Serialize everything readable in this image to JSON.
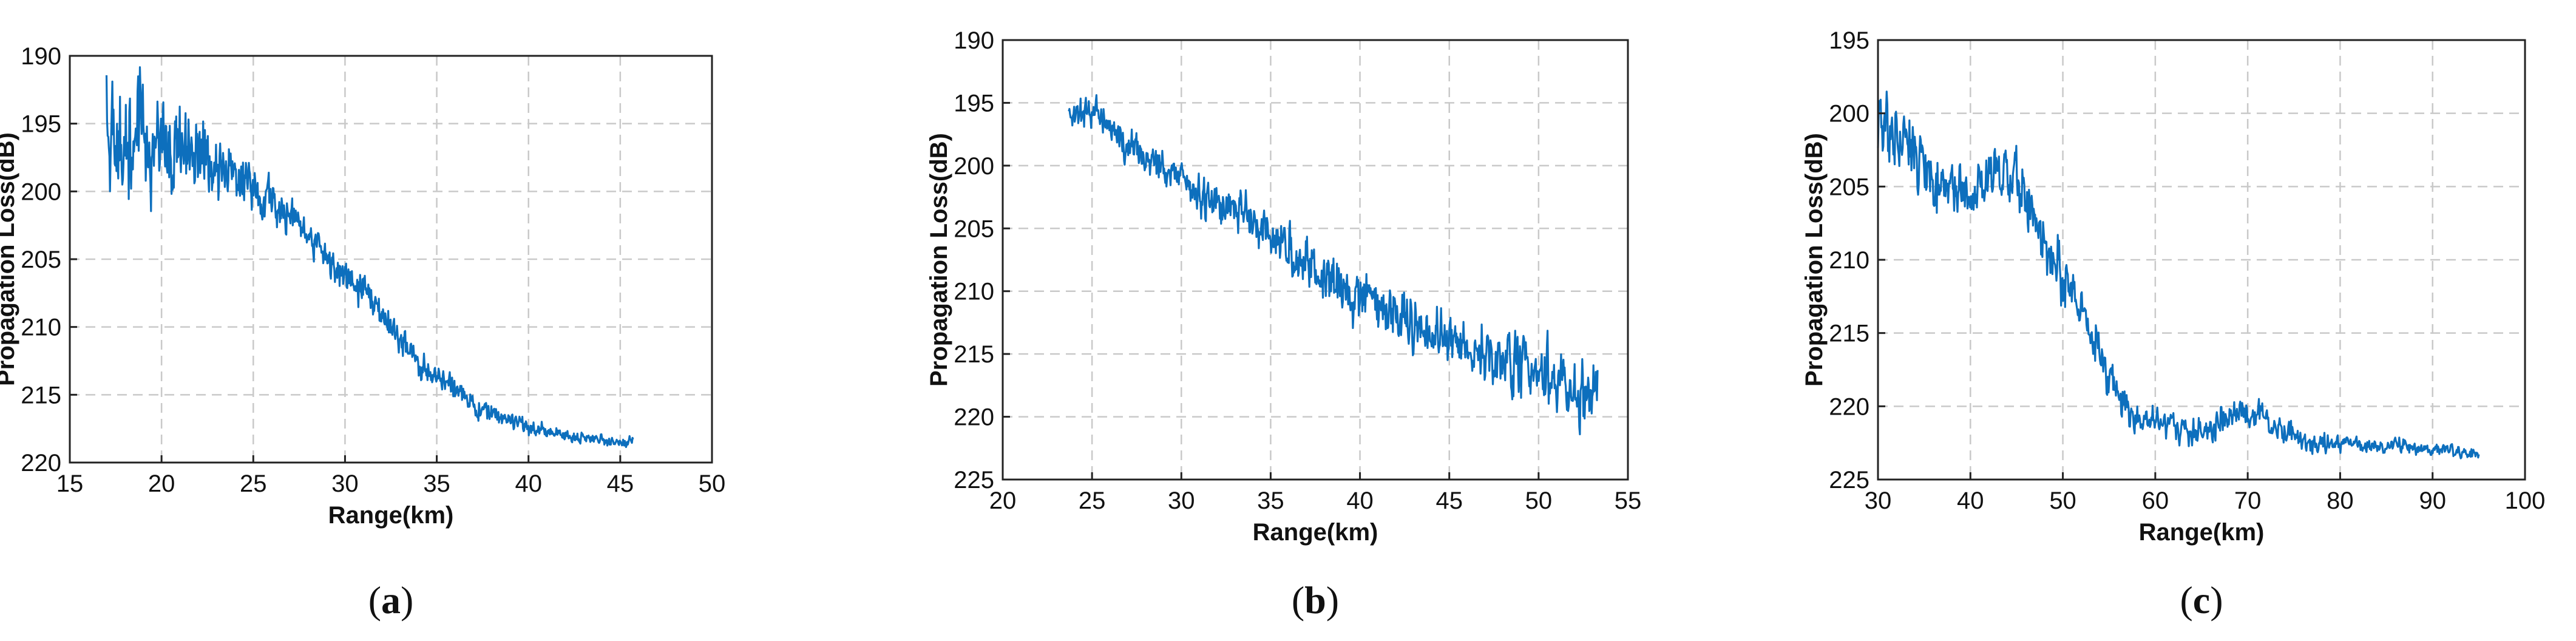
{
  "colors": {
    "line": "#0d6fbd",
    "grid": "#c9c9c9",
    "frame": "#222222",
    "background": "#ffffff"
  },
  "chart_data": [
    {
      "panel": "a",
      "caption_open": "(",
      "caption_letter": "a",
      "caption_close": ")",
      "type": "line",
      "xlabel": "Range(km)",
      "ylabel": "Propagation Loss(dB)",
      "xlim": [
        15,
        50
      ],
      "ylim": [
        190,
        220
      ],
      "y_reversed": true,
      "xticks": [
        15,
        20,
        25,
        30,
        35,
        40,
        45,
        50
      ],
      "yticks": [
        190,
        195,
        200,
        205,
        210,
        215,
        220
      ],
      "grid": true,
      "noise_sigma": [
        [
          17,
          2.6
        ],
        [
          20,
          2.5
        ],
        [
          23,
          1.3
        ],
        [
          26,
          0.8
        ],
        [
          30,
          0.7
        ],
        [
          35,
          0.5
        ],
        [
          40,
          0.3
        ],
        [
          45.5,
          0.2
        ]
      ],
      "series": [
        {
          "x": [
            17,
            18,
            19,
            20,
            21,
            22,
            23,
            24,
            25,
            26,
            27,
            28,
            29,
            30,
            31,
            32,
            33,
            34,
            35,
            36,
            37,
            38,
            39,
            40,
            41,
            42,
            43,
            44,
            45,
            45.7
          ],
          "y": [
            195.5,
            196,
            196.5,
            196.8,
            196.8,
            197,
            197.6,
            198.6,
            199.8,
            200.8,
            202,
            203.6,
            205,
            206.2,
            207.4,
            209,
            210.8,
            212.6,
            213.8,
            214.8,
            215.7,
            216.3,
            216.9,
            217.4,
            217.7,
            218,
            218.2,
            218.4,
            218.6,
            218.6
          ]
        }
      ]
    },
    {
      "panel": "b",
      "caption_open": "(",
      "caption_letter": "b",
      "caption_close": ")",
      "type": "line",
      "xlabel": "Range(km)",
      "ylabel": "Propagation Loss(dB)",
      "xlim": [
        20,
        55
      ],
      "ylim": [
        190,
        225
      ],
      "y_reversed": true,
      "xticks": [
        20,
        25,
        30,
        35,
        40,
        45,
        50,
        55
      ],
      "yticks": [
        190,
        195,
        200,
        205,
        210,
        215,
        220,
        225
      ],
      "grid": true,
      "noise_sigma": [
        [
          23.7,
          0.6
        ],
        [
          30,
          0.8
        ],
        [
          35,
          1.0
        ],
        [
          40,
          1.1
        ],
        [
          45,
          1.2
        ],
        [
          50,
          1.3
        ],
        [
          53.3,
          1.5
        ]
      ],
      "series": [
        {
          "x": [
            23.7,
            25,
            26,
            27,
            28,
            29,
            30,
            31,
            32,
            33,
            34,
            35,
            36,
            37,
            38,
            39,
            40,
            41,
            42,
            43,
            44,
            45,
            46,
            47,
            48,
            49,
            50,
            51,
            52,
            53.3
          ],
          "y": [
            195.8,
            195.6,
            196.8,
            198.8,
            199.5,
            200.2,
            201.2,
            202.3,
            202.8,
            203.4,
            204.4,
            205.3,
            206.6,
            207.5,
            208.7,
            209.8,
            210.3,
            211,
            212,
            212.7,
            213,
            213.7,
            214.4,
            214.8,
            215.3,
            215.8,
            216.3,
            216.8,
            217.3,
            218
          ]
        }
      ]
    },
    {
      "panel": "c",
      "caption_open": "(",
      "caption_letter": "c",
      "caption_close": ")",
      "type": "line",
      "xlabel": "Range(km)",
      "ylabel": "Propagation Loss(dB)",
      "xlim": [
        30,
        100
      ],
      "ylim": [
        195,
        225
      ],
      "y_reversed": true,
      "xticks": [
        30,
        40,
        50,
        60,
        70,
        80,
        90,
        100
      ],
      "yticks": [
        195,
        200,
        205,
        210,
        215,
        220,
        225
      ],
      "grid": true,
      "noise_sigma": [
        [
          30,
          1.2
        ],
        [
          40,
          1.1
        ],
        [
          45,
          1.1
        ],
        [
          50,
          1.0
        ],
        [
          55,
          0.8
        ],
        [
          60,
          0.5
        ],
        [
          70,
          0.5
        ],
        [
          80,
          0.3
        ],
        [
          95,
          0.2
        ]
      ],
      "series": [
        {
          "x": [
            30,
            32,
            34,
            36,
            38,
            40,
            42,
            44,
            46,
            48,
            50,
            52,
            54,
            56,
            58,
            60,
            62,
            64,
            66,
            68,
            70,
            72,
            74,
            76,
            78,
            80,
            82,
            84,
            86,
            88,
            90,
            92,
            95
          ],
          "y": [
            201,
            202,
            203,
            204.2,
            205.4,
            205.6,
            204.6,
            203.6,
            205.2,
            208.6,
            211.2,
            213.2,
            216.6,
            219.6,
            220.7,
            221.2,
            221.4,
            221.8,
            221.4,
            220.6,
            220.4,
            221,
            221.8,
            222.3,
            222.5,
            222.6,
            222.7,
            222.8,
            222.5,
            222.8,
            222.9,
            223.1,
            223.2
          ]
        }
      ]
    }
  ]
}
